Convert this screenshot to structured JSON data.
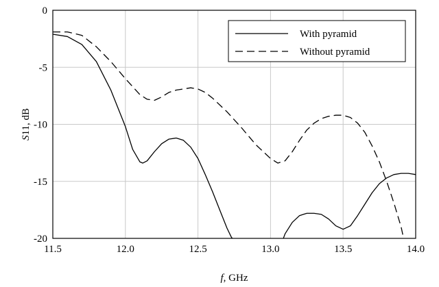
{
  "chart_data": {
    "type": "line",
    "xlabel": {
      "italic": "f",
      "rest": ", GHz"
    },
    "ylabel": {
      "italic": "S",
      "rest": "11, dB"
    },
    "xlim": [
      11.5,
      14.0
    ],
    "ylim": [
      -20,
      0
    ],
    "xticks": [
      "11.5",
      "12.0",
      "12.5",
      "13.0",
      "13.5",
      "14.0"
    ],
    "yticks": [
      "0",
      "-5",
      "-10",
      "-15",
      "-20"
    ],
    "grid": true,
    "legend_position": "top-right",
    "series": [
      {
        "name": "With pyramid",
        "style": "solid",
        "color": "#000000",
        "x": [
          11.5,
          11.6,
          11.7,
          11.8,
          11.9,
          12.0,
          12.05,
          12.1,
          12.12,
          12.15,
          12.2,
          12.25,
          12.3,
          12.35,
          12.4,
          12.45,
          12.5,
          12.55,
          12.6,
          12.65,
          12.7,
          12.73,
          12.75
        ],
        "y": [
          -2.1,
          -2.3,
          -3.0,
          -4.5,
          -7.0,
          -10.2,
          -12.2,
          -13.3,
          -13.4,
          -13.2,
          -12.4,
          -11.7,
          -11.3,
          -11.2,
          -11.4,
          -12.0,
          -13.0,
          -14.4,
          -15.9,
          -17.5,
          -19.1,
          -19.9,
          -20.2
        ]
      },
      {
        "name": "With pyramid",
        "style": "solid",
        "color": "#000000",
        "x": [
          13.08,
          13.1,
          13.15,
          13.2,
          13.25,
          13.3,
          13.35,
          13.4,
          13.45,
          13.5,
          13.55,
          13.6,
          13.65,
          13.7,
          13.75,
          13.8,
          13.85,
          13.9,
          13.95,
          14.0
        ],
        "y": [
          -20.3,
          -19.6,
          -18.6,
          -18.0,
          -17.8,
          -17.8,
          -17.9,
          -18.3,
          -18.9,
          -19.2,
          -18.9,
          -18.0,
          -17.0,
          -16.0,
          -15.2,
          -14.7,
          -14.4,
          -14.3,
          -14.3,
          -14.4
        ]
      },
      {
        "name": "Without pyramid",
        "style": "dashed",
        "color": "#000000",
        "x": [
          11.5,
          11.6,
          11.7,
          11.8,
          11.9,
          12.0,
          12.1,
          12.15,
          12.2,
          12.25,
          12.3,
          12.35,
          12.4,
          12.45,
          12.5,
          12.55,
          12.6,
          12.7,
          12.8,
          12.9,
          13.0,
          13.05,
          13.1,
          13.15,
          13.2,
          13.25,
          13.3,
          13.35,
          13.4,
          13.45,
          13.5,
          13.55,
          13.6,
          13.65,
          13.7,
          13.75,
          13.8,
          13.85,
          13.9,
          13.92
        ],
        "y": [
          -1.9,
          -1.9,
          -2.2,
          -3.2,
          -4.5,
          -6.0,
          -7.4,
          -7.8,
          -7.9,
          -7.6,
          -7.2,
          -7.0,
          -6.9,
          -6.8,
          -6.9,
          -7.2,
          -7.7,
          -8.9,
          -10.3,
          -11.8,
          -13.0,
          -13.4,
          -13.2,
          -12.4,
          -11.4,
          -10.5,
          -9.9,
          -9.5,
          -9.3,
          -9.2,
          -9.2,
          -9.4,
          -9.9,
          -10.7,
          -11.9,
          -13.3,
          -15.0,
          -16.9,
          -19.0,
          -20.2
        ]
      }
    ],
    "legend": [
      {
        "label": "With pyramid",
        "style": "solid"
      },
      {
        "label": "Without pyramid",
        "style": "dashed"
      }
    ]
  }
}
